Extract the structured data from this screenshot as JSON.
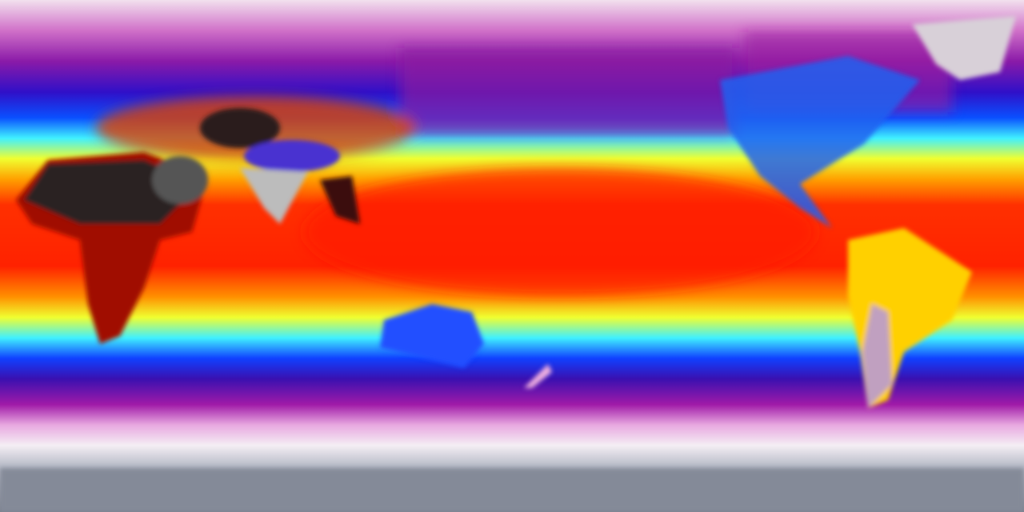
{
  "map": {
    "projection": "equirectangular",
    "type": "global temperature field",
    "colormap": [
      "#8a8f9c",
      "#f2e4f0",
      "#c030b0",
      "#6a0a9a",
      "#1a10d0",
      "#0060ff",
      "#40f0ff",
      "#f0ff30",
      "#ffa000",
      "#ff2000",
      "#c00000",
      "#2a1a1a",
      "#d0d0d0"
    ],
    "features": [
      "africa",
      "eurasia",
      "tibetan-plateau",
      "india",
      "australia",
      "north-america",
      "south-america",
      "greenland",
      "antarctica"
    ]
  }
}
